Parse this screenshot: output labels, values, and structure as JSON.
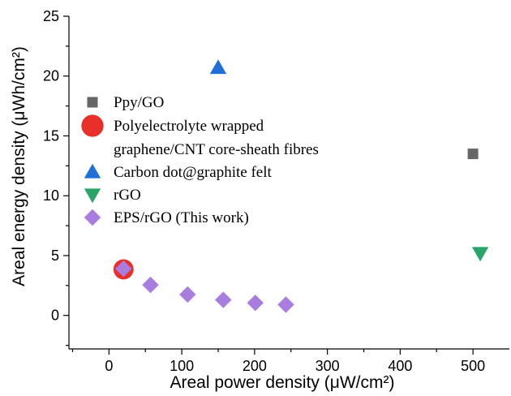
{
  "chart_data": {
    "type": "scatter",
    "xlabel": "Areal power density (μW/cm²)",
    "ylabel": "Areal energy density (μWh/cm²)",
    "xlim": [
      -55,
      550
    ],
    "ylim": [
      -2.8,
      25
    ],
    "xticks": [
      0,
      100,
      200,
      300,
      400,
      500
    ],
    "yticks": [
      0,
      5,
      10,
      15,
      20,
      25
    ],
    "grid": false,
    "legend_position": "upper-left",
    "series": [
      {
        "name": "Ppy/GO",
        "marker": "square",
        "color": "#666666",
        "points": [
          {
            "x": 500,
            "y": 13.5
          }
        ]
      },
      {
        "name": "Polyelectrolyte wrapped graphene/CNT core-sheath fibres",
        "marker": "circle",
        "color": "#e8302a",
        "points": [
          {
            "x": 20,
            "y": 3.85
          }
        ]
      },
      {
        "name": "Carbon dot@graphite felt",
        "marker": "triangle-up",
        "color": "#1f6fd6",
        "points": [
          {
            "x": 150,
            "y": 20.7
          }
        ]
      },
      {
        "name": "rGO",
        "marker": "triangle-down",
        "color": "#2aa56a",
        "points": [
          {
            "x": 510,
            "y": 5.2
          }
        ]
      },
      {
        "name": "EPS/rGO (This work)",
        "marker": "diamond",
        "color": "#a97ce0",
        "points": [
          {
            "x": 20,
            "y": 3.9
          },
          {
            "x": 57,
            "y": 2.55
          },
          {
            "x": 108,
            "y": 1.75
          },
          {
            "x": 157,
            "y": 1.3
          },
          {
            "x": 201,
            "y": 1.05
          },
          {
            "x": 243,
            "y": 0.9
          }
        ]
      }
    ],
    "legend": [
      {
        "lines": [
          "Ppy/GO"
        ]
      },
      {
        "lines": [
          "Polyelectrolyte wrapped",
          "graphene/CNT core-sheath fibres"
        ]
      },
      {
        "lines": [
          "Carbon dot@graphite felt"
        ]
      },
      {
        "lines": [
          "rGO"
        ]
      },
      {
        "lines": [
          "EPS/rGO (This work)"
        ]
      }
    ]
  }
}
